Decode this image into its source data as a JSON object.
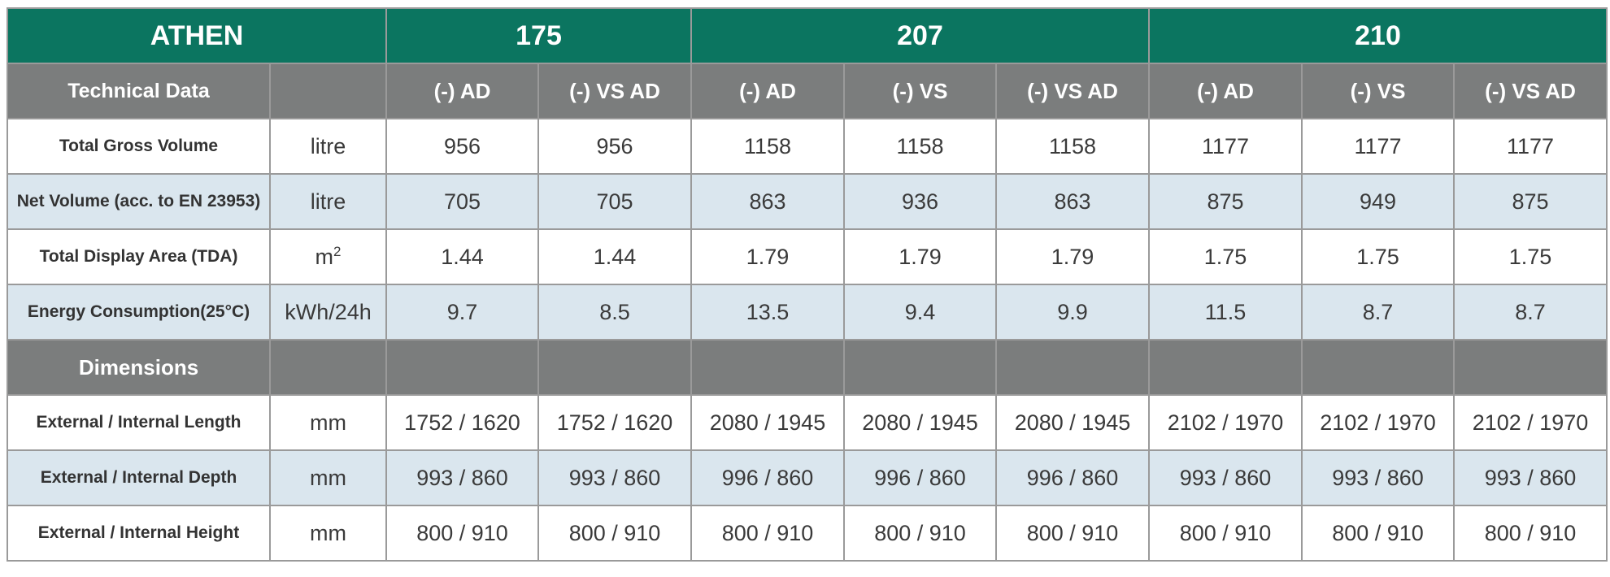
{
  "brand": "ATHEN",
  "models": [
    {
      "name": "175",
      "span": 2
    },
    {
      "name": "207",
      "span": 3
    },
    {
      "name": "210",
      "span": 3
    }
  ],
  "variants": [
    "(-) AD",
    "(-) VS AD",
    "(-) AD",
    "(-) VS",
    "(-) VS AD",
    "(-) AD",
    "(-) VS",
    "(-) VS AD"
  ],
  "sections": [
    {
      "title": "Technical Data",
      "rows": [
        {
          "label": "Total Gross Volume",
          "unit": "litre",
          "values": [
            "956",
            "956",
            "1158",
            "1158",
            "1158",
            "1177",
            "1177",
            "1177"
          ]
        },
        {
          "label": "Net Volume (acc. to EN 23953)",
          "unit": "litre",
          "values": [
            "705",
            "705",
            "863",
            "936",
            "863",
            "875",
            "949",
            "875"
          ]
        },
        {
          "label": "Total Display Area (TDA)",
          "unit": "m",
          "unit_sup": "2",
          "values": [
            "1.44",
            "1.44",
            "1.79",
            "1.79",
            "1.79",
            "1.75",
            "1.75",
            "1.75"
          ]
        },
        {
          "label": "Energy Consumption(25°C)",
          "unit": "kWh/24h",
          "values": [
            "9.7",
            "8.5",
            "13.5",
            "9.4",
            "9.9",
            "11.5",
            "8.7",
            "8.7"
          ]
        }
      ]
    },
    {
      "title": "Dimensions",
      "rows": [
        {
          "label": "External / Internal Length",
          "unit": "mm",
          "values": [
            "1752 / 1620",
            "1752 / 1620",
            "2080 / 1945",
            "2080 / 1945",
            "2080 / 1945",
            "2102 / 1970",
            "2102 / 1970",
            "2102 / 1970"
          ]
        },
        {
          "label": "External / Internal Depth",
          "unit": "mm",
          "values": [
            "993 / 860",
            "993 / 860",
            "996 / 860",
            "996 / 860",
            "996 / 860",
            "993 / 860",
            "993 / 860",
            "993 / 860"
          ]
        },
        {
          "label": "External / Internal Height",
          "unit": "mm",
          "values": [
            "800 / 910",
            "800 / 910",
            "800 / 910",
            "800 / 910",
            "800 / 910",
            "800 / 910",
            "800 / 910",
            "800 / 910"
          ]
        }
      ]
    }
  ]
}
